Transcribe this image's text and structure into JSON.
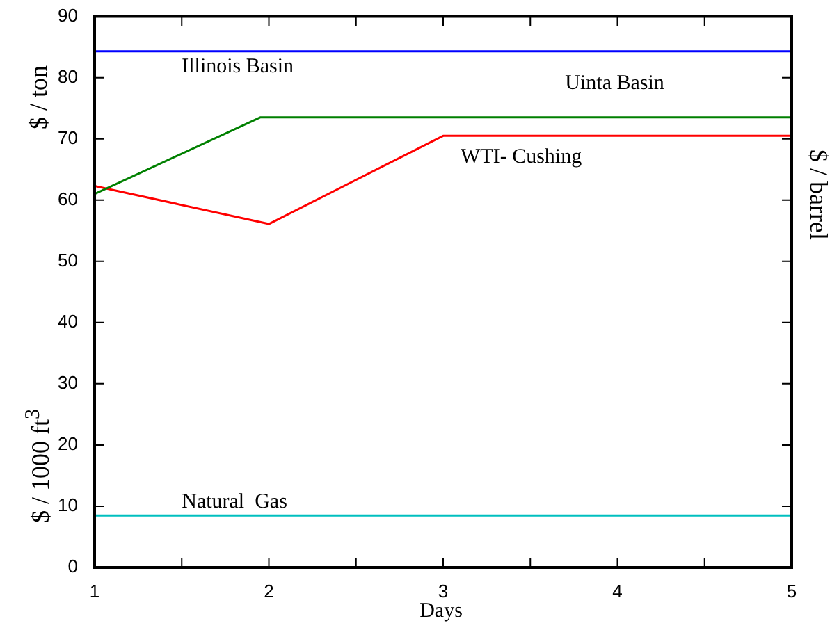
{
  "chart_data": {
    "type": "line",
    "xlabel": "Days",
    "ylabel": "$ / ton",
    "y2label": "$ / barrel",
    "annotations": [
      "$ / 1000 ft$^{3}$"
    ],
    "xlim": [
      1,
      5
    ],
    "xticks": [
      1,
      {
        "value": 1.5,
        "label": null
      },
      2,
      {
        "value": 2.5,
        "label": null
      },
      3,
      {
        "value": 3.5,
        "label": null
      },
      4,
      {
        "value": 4.5,
        "label": null
      },
      5
    ],
    "ylim": [
      0,
      90
    ],
    "yticks": [
      0,
      10,
      20,
      30,
      40,
      50,
      60,
      70,
      80,
      90
    ],
    "grid": false,
    "legend": false,
    "marker": "none",
    "line_style": "solid",
    "series": [
      {
        "name": "Illinois Basin",
        "color": "#0000ff",
        "x": [
          1,
          5
        ],
        "values": [
          84.3,
          84.3
        ]
      },
      {
        "name": "Uinta Basin",
        "color": "#008000",
        "x": [
          1,
          1.95,
          5
        ],
        "values": [
          61,
          73.5,
          73.5
        ]
      },
      {
        "name": "WTI- Cushing",
        "color": "#ff0000",
        "x": [
          1,
          2,
          3,
          5
        ],
        "values": [
          62.3,
          56.1,
          70.5,
          70.5
        ]
      },
      {
        "name": "Natural  Gas",
        "color": "#00bfbf",
        "x": [
          1,
          5
        ],
        "values": [
          8.5,
          8.5
        ]
      }
    ]
  }
}
